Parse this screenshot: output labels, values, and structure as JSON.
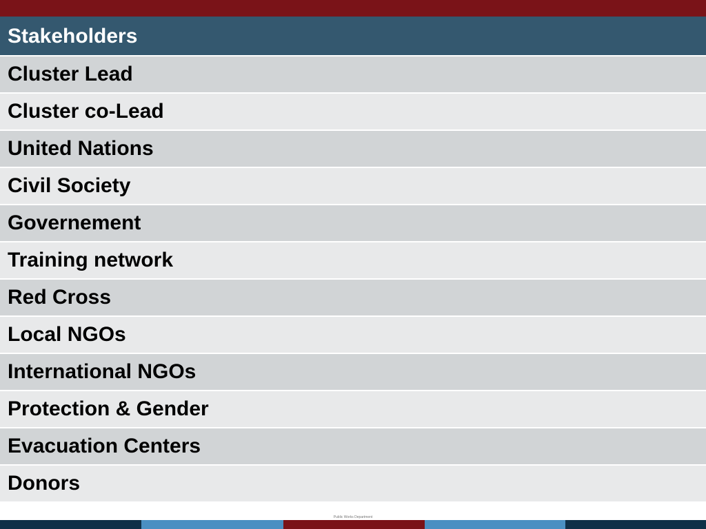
{
  "table": {
    "header": "Stakeholders",
    "rows": [
      "Cluster Lead",
      "Cluster co-Lead",
      "United Nations",
      "Civil Society",
      "Governement",
      "Training network",
      "Red Cross",
      "Local NGOs",
      "International NGOs",
      "Protection & Gender",
      "Evacuation Centers",
      "Donors"
    ]
  },
  "footer": {
    "note": "Public Works Department"
  },
  "colors": {
    "top_band": "#7a1318",
    "header_bg": "#34586f",
    "row_odd": "#d1d4d6",
    "row_even": "#e8e9ea",
    "strip_dark": "#0f3048",
    "strip_light": "#4a8fc2",
    "strip_red": "#7a1318"
  }
}
